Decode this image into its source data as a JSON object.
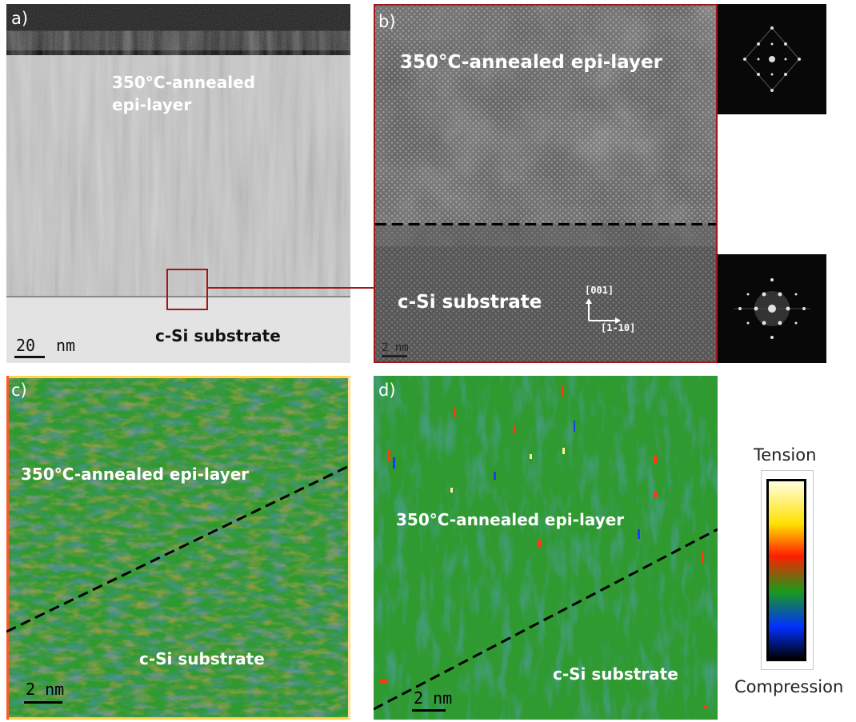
{
  "panels": {
    "a": {
      "label": "a)",
      "epi_label_line1": "350°C-annealed",
      "epi_label_line2": "epi-layer",
      "substrate_label": "c-Si substrate",
      "scalebar_num": "20",
      "scalebar_unit": "nm"
    },
    "b": {
      "label": "b)",
      "epi_label": "350°C-annealed epi-layer",
      "substrate_label": "c-Si substrate",
      "axis_up": "[001]",
      "axis_right": "[1-10]",
      "scalebar": "2 nm"
    },
    "c": {
      "label": "c)",
      "epi_label": "350°C-annealed epi-layer",
      "substrate_label": "c-Si substrate",
      "scalebar": "2 nm"
    },
    "d": {
      "label": "d)",
      "epi_label": "350°C-annealed epi-layer",
      "substrate_label": "c-Si substrate",
      "scalebar": "2 nm"
    }
  },
  "colorbar": {
    "top_label": "Tension",
    "bottom_label": "Compression",
    "colors": [
      "#ffffe0",
      "#ffe000",
      "#ff2000",
      "#1a9a1a",
      "#0030ff",
      "#000000"
    ]
  },
  "colors": {
    "zoom_box": "#a01818",
    "strain_green": "#2f9a2f"
  }
}
